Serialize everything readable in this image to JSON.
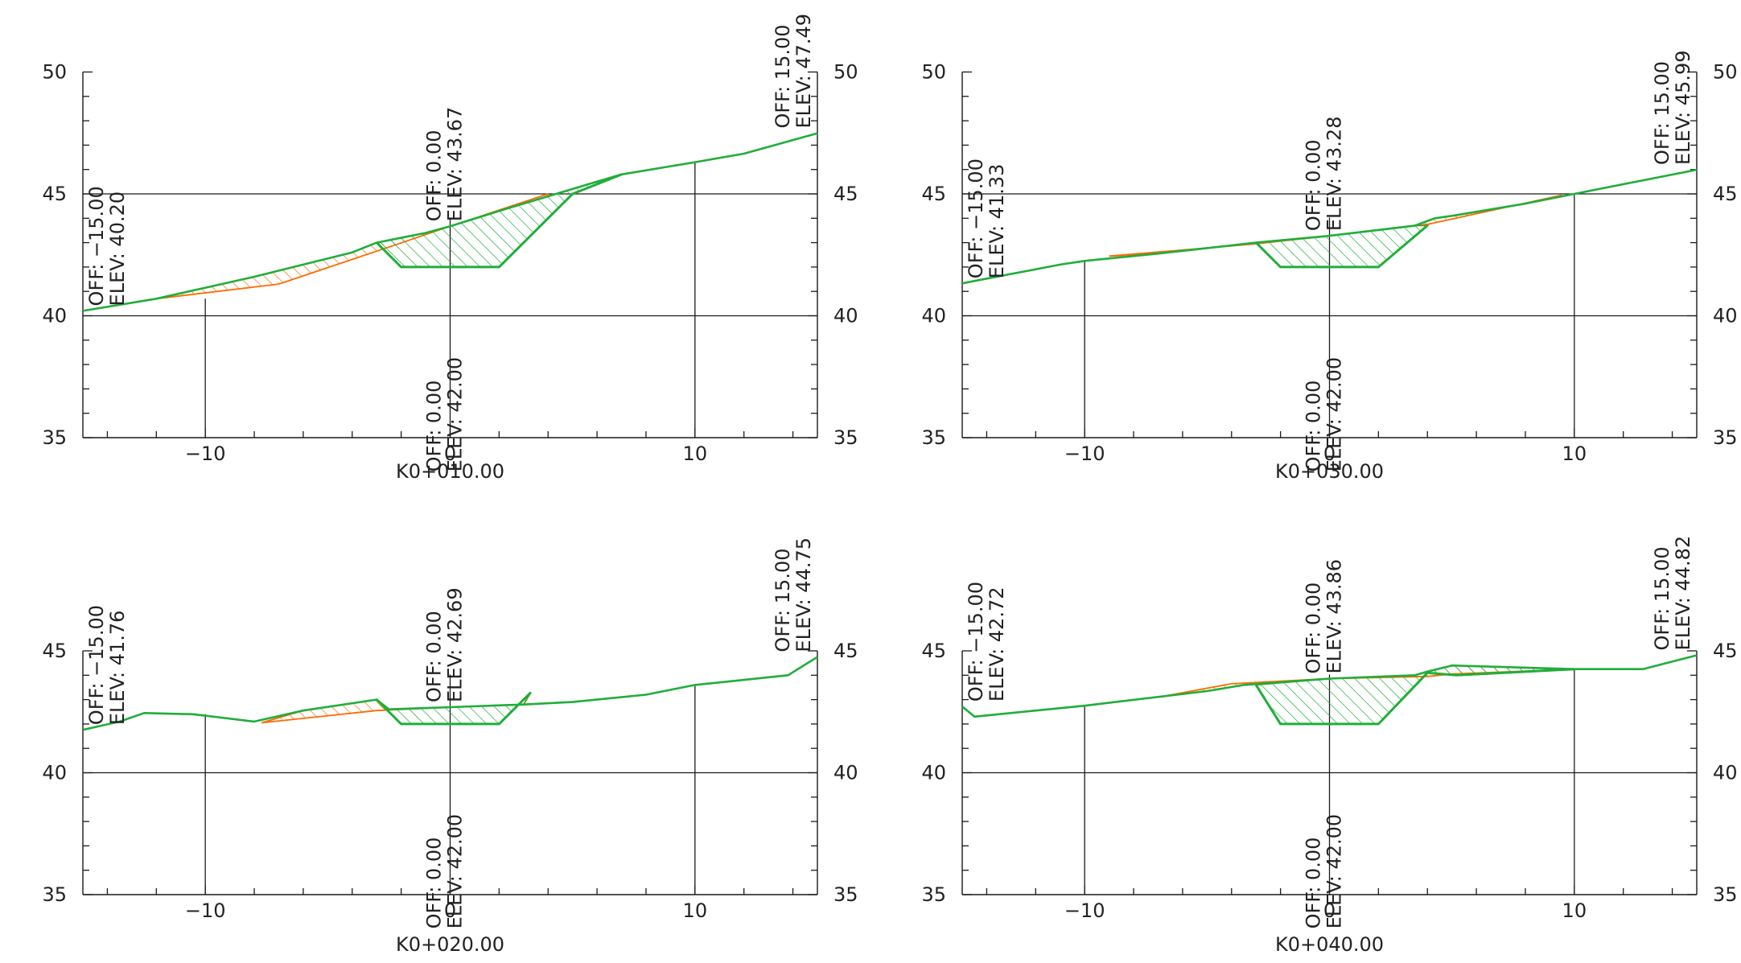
{
  "colors": {
    "ground": "#1fae3a",
    "fill": "#ff6a00",
    "cut": "#6d8f1e",
    "axis": "#1a1a1a"
  },
  "sections": [
    {
      "station": "K0+010.00",
      "y_ticks": [
        "35",
        "40",
        "45",
        "50"
      ],
      "x_ticks": [
        "−10",
        "0",
        "10"
      ],
      "ground": [
        [
          -15,
          40.2
        ],
        [
          -12,
          40.7
        ],
        [
          -8,
          41.6
        ],
        [
          -4,
          42.6
        ],
        [
          -3,
          43.0
        ],
        [
          -1,
          43.4
        ],
        [
          0,
          43.67
        ],
        [
          2,
          44.3
        ],
        [
          4,
          44.9
        ],
        [
          6,
          45.5
        ],
        [
          7,
          45.8
        ],
        [
          10,
          46.3
        ],
        [
          12,
          46.65
        ],
        [
          15,
          47.49
        ]
      ],
      "existing": [
        [
          -12,
          40.7
        ],
        [
          -7,
          41.3
        ],
        [
          -3,
          42.65
        ],
        [
          0,
          43.67
        ],
        [
          4,
          45.0
        ]
      ],
      "design": [
        [
          -2,
          42.0
        ],
        [
          2,
          42.0
        ],
        [
          5,
          45.0
        ],
        [
          7,
          45.8
        ]
      ],
      "labels": {
        "left": {
          "off": "OFF: −15.00",
          "elev": "ELEV: 40.20"
        },
        "right": {
          "off": "OFF: 15.00",
          "elev": "ELEV: 47.49"
        },
        "center_top": {
          "off": "OFF: 0.00",
          "elev": "ELEV: 43.67"
        },
        "center_bottom": {
          "off": "OFF: 0.00",
          "elev": "ELEV: 42.00"
        }
      }
    },
    {
      "station": "K0+020.00",
      "y_ticks": [
        "35",
        "40",
        "45"
      ],
      "x_ticks": [
        "−10",
        "0",
        "10"
      ],
      "ground": [
        [
          -15,
          41.76
        ],
        [
          -13.5,
          42.1
        ],
        [
          -12.5,
          42.45
        ],
        [
          -10.5,
          42.4
        ],
        [
          -8,
          42.1
        ],
        [
          -6,
          42.55
        ],
        [
          -3,
          43.0
        ],
        [
          -2.5,
          42.6
        ],
        [
          0,
          42.69
        ],
        [
          3,
          42.8
        ],
        [
          5,
          42.9
        ],
        [
          8,
          43.2
        ],
        [
          10,
          43.6
        ],
        [
          13.8,
          44.0
        ],
        [
          15,
          44.75
        ]
      ],
      "existing": [
        [
          -7.7,
          42.05
        ],
        [
          -3,
          42.55
        ],
        [
          0,
          42.69
        ],
        [
          3,
          42.8
        ]
      ],
      "design": [
        [
          -2,
          42.0
        ],
        [
          2,
          42.0
        ],
        [
          3.3,
          43.3
        ]
      ],
      "labels": {
        "left": {
          "off": "OFF: −15.00",
          "elev": "ELEV: 41.76"
        },
        "right": {
          "off": "OFF: 15.00",
          "elev": "ELEV: 44.75"
        },
        "center_top": {
          "off": "OFF: 0.00",
          "elev": "ELEV: 42.69"
        },
        "center_bottom": {
          "off": "OFF: 0.00",
          "elev": "ELEV: 42.00"
        }
      }
    },
    {
      "station": "K0+030.00",
      "y_ticks": [
        "35",
        "40",
        "45",
        "50"
      ],
      "x_ticks": [
        "−10",
        "0",
        "10"
      ],
      "ground": [
        [
          -15,
          41.33
        ],
        [
          -11,
          42.1
        ],
        [
          -10,
          42.25
        ],
        [
          -7,
          42.55
        ],
        [
          -3,
          43.0
        ],
        [
          0,
          43.28
        ],
        [
          3.5,
          43.7
        ],
        [
          4.3,
          44.0
        ],
        [
          5,
          44.1
        ],
        [
          8,
          44.6
        ],
        [
          10,
          45.0
        ],
        [
          15,
          45.99
        ]
      ],
      "existing": [
        [
          -9,
          42.45
        ],
        [
          -3,
          42.95
        ],
        [
          0,
          43.28
        ],
        [
          4,
          43.75
        ],
        [
          9.5,
          44.95
        ]
      ],
      "design": [
        [
          -2,
          42.0
        ],
        [
          2,
          42.0
        ],
        [
          4,
          43.7
        ]
      ],
      "labels": {
        "left": {
          "off": "OFF: −15.00",
          "elev": "ELEV: 41.33"
        },
        "right": {
          "off": "OFF: 15.00",
          "elev": "ELEV: 45.99"
        },
        "center_top": {
          "off": "OFF: 0.00",
          "elev": "ELEV: 43.28"
        },
        "center_bottom": {
          "off": "OFF: 0.00",
          "elev": "ELEV: 42.00"
        }
      }
    },
    {
      "station": "K0+040.00",
      "y_ticks": [
        "35",
        "40",
        "45"
      ],
      "x_ticks": [
        "−10",
        "0",
        "10"
      ],
      "ground": [
        [
          -15,
          42.72
        ],
        [
          -14.5,
          42.3
        ],
        [
          -10,
          42.75
        ],
        [
          -5,
          43.35
        ],
        [
          -3.5,
          43.6
        ],
        [
          0,
          43.86
        ],
        [
          3.5,
          44.0
        ],
        [
          4,
          44.15
        ],
        [
          5,
          44.4
        ],
        [
          10,
          44.25
        ],
        [
          12.8,
          44.25
        ],
        [
          15,
          44.82
        ]
      ],
      "existing": [
        [
          -7,
          43.1
        ],
        [
          -4,
          43.65
        ],
        [
          0,
          43.86
        ],
        [
          4,
          43.95
        ],
        [
          5,
          44.05
        ],
        [
          10,
          44.25
        ]
      ],
      "design": [
        [
          -2,
          42.0
        ],
        [
          2,
          42.0
        ],
        [
          4,
          44.1
        ],
        [
          5.2,
          44.0
        ],
        [
          10,
          44.25
        ]
      ],
      "labels": {
        "left": {
          "off": "OFF: −15.00",
          "elev": "ELEV: 42.72"
        },
        "right": {
          "off": "OFF: 15.00",
          "elev": "ELEV: 44.82"
        },
        "center_top": {
          "off": "OFF: 0.00",
          "elev": "ELEV: 43.86"
        },
        "center_bottom": {
          "off": "OFF: 0.00",
          "elev": "ELEV: 42.00"
        }
      }
    }
  ]
}
